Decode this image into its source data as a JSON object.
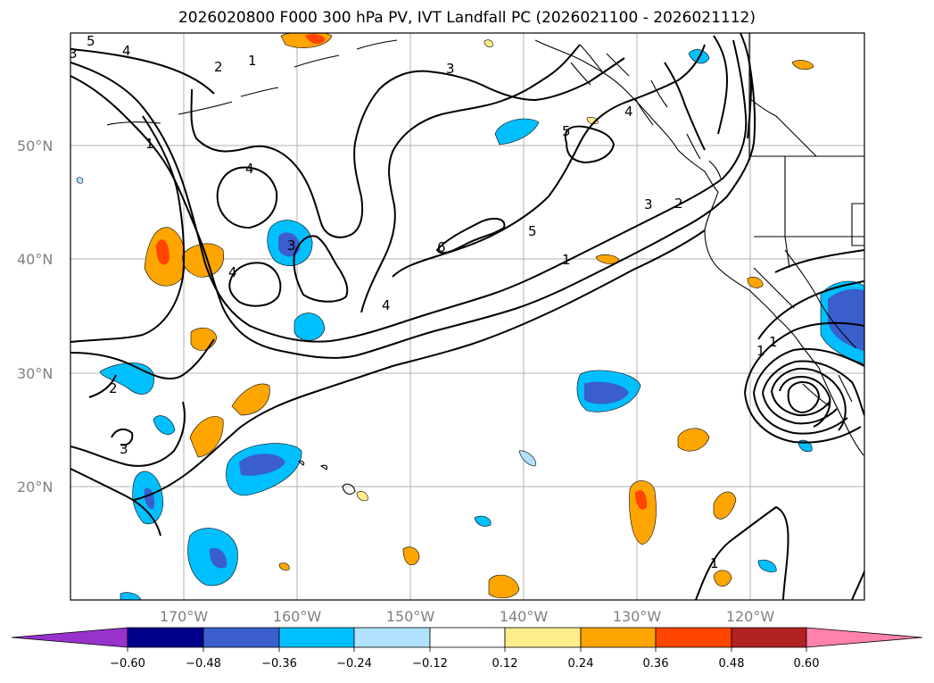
{
  "title": "2026020800 F000 300 hPa PV, IVT Landfall PC (2026021100 - 2026021112)",
  "map": {
    "lat_labels": [
      "50°N",
      "40°N",
      "30°N",
      "20°N"
    ],
    "lon_labels": [
      "170°W",
      "160°W",
      "150°W",
      "140°W",
      "130°W",
      "120°W"
    ],
    "contour_labels": [
      "5",
      "4",
      "3",
      "2",
      "1",
      "3",
      "4",
      "1",
      "4",
      "3",
      "4",
      "6",
      "5",
      "3",
      "2",
      "1",
      "4",
      "5",
      "2",
      "3",
      "1",
      "1",
      "1"
    ]
  },
  "colorbar": {
    "ticks": [
      "−0.60",
      "−0.48",
      "−0.36",
      "−0.24",
      "−0.12",
      "0.12",
      "0.24",
      "0.36",
      "0.48",
      "0.60"
    ],
    "colors": [
      "#9932cc",
      "#00008b",
      "#3a5fcd",
      "#00bfff",
      "#b0e2ff",
      "#ffffff",
      "#ffec8b",
      "#ffa500",
      "#ff4500",
      "#b22222",
      "#ff82ab"
    ]
  },
  "colors": {
    "neg_light": "#b0e2ff",
    "neg_mid": "#00bfff",
    "neg_dark": "#3a5fcd",
    "pos_light": "#ffec8b",
    "pos_mid": "#ffa500",
    "pos_dark": "#ff4500",
    "grid": "#b0b0b0"
  }
}
